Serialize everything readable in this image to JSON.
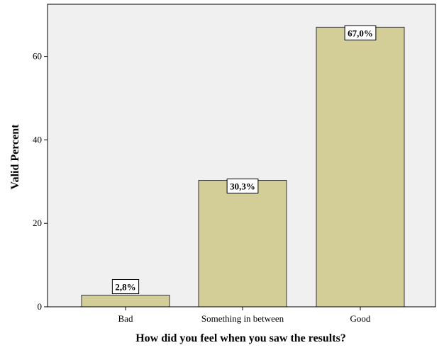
{
  "chart_data": {
    "type": "bar",
    "categories": [
      "Bad",
      "Something in between",
      "Good"
    ],
    "values": [
      2.8,
      30.3,
      67.0
    ],
    "data_labels": [
      "2,8%",
      "30,3%",
      "67,0%"
    ],
    "xlabel": "How did you feel when you saw the results?",
    "ylabel": "Valid Percent",
    "ylim": [
      0,
      72.5
    ],
    "yticks": [
      0,
      20,
      40,
      60
    ],
    "ytick_labels": [
      "0",
      "20",
      "40",
      "60"
    ],
    "grid": false,
    "colors": {
      "plot_background": "#f0f0f0",
      "bar_fill": "#d3ce97",
      "bar_stroke": "#333333",
      "label_box_fill": "#ffffff"
    }
  }
}
